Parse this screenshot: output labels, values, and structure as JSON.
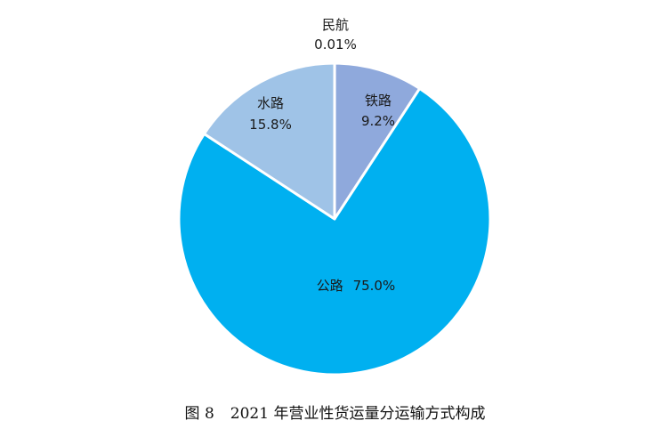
{
  "chart_data": {
    "type": "pie",
    "title": "2021 年营业性货运量分运输方式构成",
    "figure_number": "图 8",
    "slices": [
      {
        "label": "民航",
        "value": 0.01,
        "value_text": "0.01%",
        "color": "#8fa9dc"
      },
      {
        "label": "铁路",
        "value": 9.2,
        "value_text": "9.2%",
        "color": "#8fa9dc"
      },
      {
        "label": "公路",
        "value": 75.0,
        "value_text": "75.0%",
        "color": "#00b0f0"
      },
      {
        "label": "水路",
        "value": 15.8,
        "value_text": "15.8%",
        "color": "#9fc3e7"
      }
    ],
    "start_angle_deg": 0,
    "direction": "clockwise",
    "legend": "none"
  }
}
